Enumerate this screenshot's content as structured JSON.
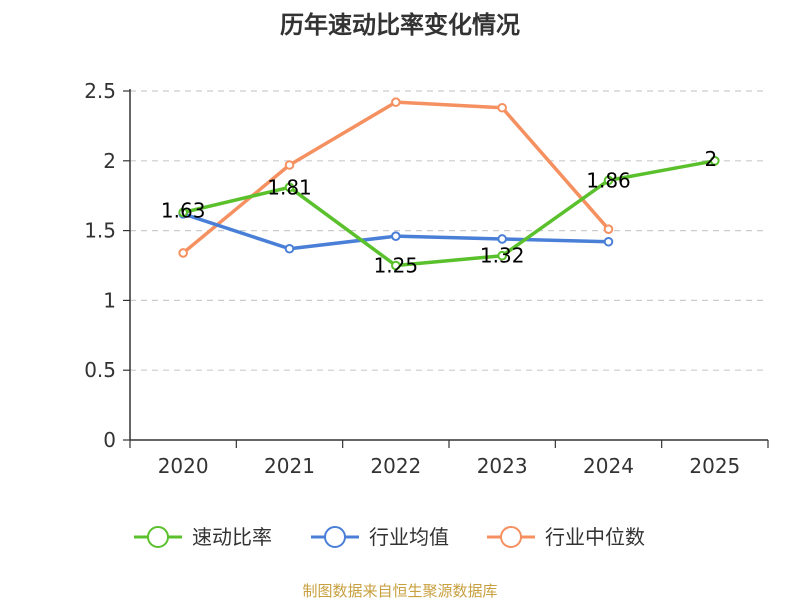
{
  "chart_data": {
    "type": "line",
    "title": "历年速动比率变化情况",
    "categories": [
      "2020",
      "2021",
      "2022",
      "2023",
      "2024",
      "2025"
    ],
    "ylim": [
      0,
      2.5
    ],
    "yticks": [
      "0",
      "0.5",
      "1",
      "1.5",
      "2",
      "2.5"
    ],
    "grid": true,
    "legend_position": "bottom",
    "series": [
      {
        "name": "速动比率",
        "color": "#5ac12d",
        "values": [
          1.63,
          1.81,
          1.25,
          1.32,
          1.86,
          2
        ],
        "labels": [
          "1.63",
          "1.81",
          "1.25",
          "1.32",
          "1.86",
          "2"
        ]
      },
      {
        "name": "行业均值",
        "color": "#4a7fd8",
        "values": [
          1.62,
          1.37,
          1.46,
          1.44,
          1.42,
          null
        ]
      },
      {
        "name": "行业中位数",
        "color": "#f59060",
        "values": [
          1.34,
          1.97,
          2.42,
          2.38,
          1.51,
          null
        ]
      }
    ]
  },
  "source_text": "制图数据来自恒生聚源数据库"
}
